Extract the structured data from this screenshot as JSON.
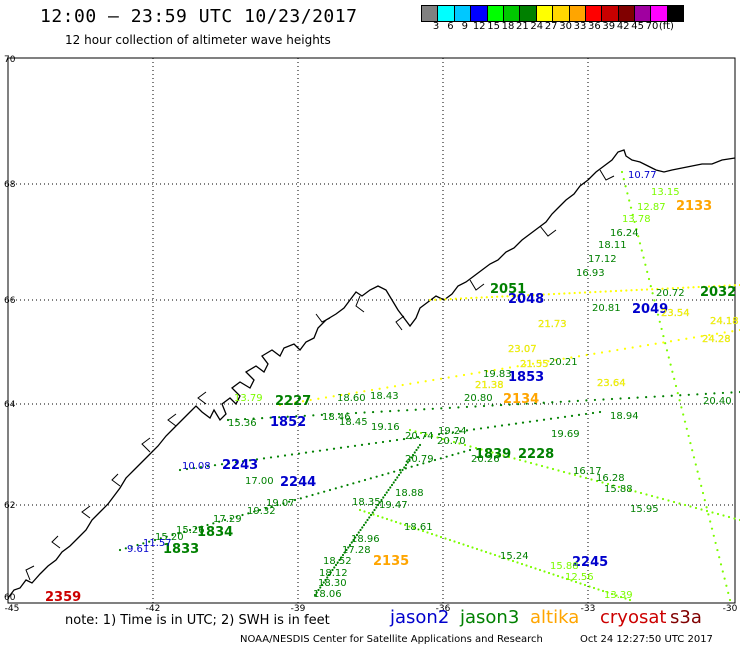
{
  "header": {
    "title": "12:00 – 23:59 UTC 10/23/2017",
    "subtitle": "12 hour collection of altimeter wave heights"
  },
  "colorbar": {
    "colors": [
      "#808080",
      "#00ffff",
      "#00c8ff",
      "#0000ff",
      "#00ff00",
      "#00c800",
      "#008000",
      "#ffff00",
      "#ffd700",
      "#ffa500",
      "#ff0000",
      "#c80000",
      "#800000",
      "#a000a0",
      "#ff00ff",
      "#000000"
    ],
    "labels": [
      "3",
      "6",
      "9",
      "12",
      "15",
      "18",
      "21",
      "24",
      "27",
      "30",
      "33",
      "36",
      "39",
      "42",
      "45",
      "70",
      "(ft)"
    ]
  },
  "axes": {
    "lat_labels": [
      "70",
      "68",
      "66",
      "64",
      "62",
      "60"
    ],
    "lon_labels": [
      "-45",
      "-42",
      "-39",
      "-36",
      "-33",
      "-30"
    ]
  },
  "satellite_colors": {
    "jason2": "#0000cc",
    "jason3": "#008000",
    "altika": "#ffa500",
    "cryosat": "#cc0000",
    "s3a": "#800000",
    "light_green": "#7cfc00",
    "yellow": "#ffff00"
  },
  "time_labels": [
    {
      "text": "2227",
      "sat": "jason3"
    },
    {
      "text": "1852",
      "sat": "jason2"
    },
    {
      "text": "2243",
      "sat": "jason2"
    },
    {
      "text": "2244",
      "sat": "jason2"
    },
    {
      "text": "1833",
      "sat": "jason3"
    },
    {
      "text": "1834",
      "sat": "jason3"
    },
    {
      "text": "2135",
      "sat": "altika"
    },
    {
      "text": "2245",
      "sat": "jason2"
    },
    {
      "text": "2133",
      "sat": "altika"
    },
    {
      "text": "2134",
      "sat": "altika"
    },
    {
      "text": "2048",
      "sat": "jason2"
    },
    {
      "text": "2051",
      "sat": "jason3"
    },
    {
      "text": "2049",
      "sat": "jason2"
    },
    {
      "text": "2032",
      "sat": "jason3"
    },
    {
      "text": "1853",
      "sat": "jason2"
    },
    {
      "text": "1839",
      "sat": "jason3"
    },
    {
      "text": "2228",
      "sat": "jason3"
    },
    {
      "text": "2359",
      "sat": "cryosat"
    }
  ],
  "wave_values": [
    {
      "text": "10.77",
      "sat": "jason2"
    },
    {
      "text": "13.15",
      "sat": "light_green"
    },
    {
      "text": "12.87",
      "sat": "light_green"
    },
    {
      "text": "13.78",
      "sat": "light_green"
    },
    {
      "text": "16.24",
      "sat": "jason3"
    },
    {
      "text": "18.11",
      "sat": "jason3"
    },
    {
      "text": "17.12",
      "sat": "jason3"
    },
    {
      "text": "16.93",
      "sat": "jason3"
    },
    {
      "text": "20.72",
      "sat": "jason3"
    },
    {
      "text": "20.81",
      "sat": "jason3"
    },
    {
      "text": "21.73",
      "sat": "yellow"
    },
    {
      "text": "21.55",
      "sat": "yellow"
    },
    {
      "text": "23.07",
      "sat": "yellow"
    },
    {
      "text": "20.21",
      "sat": "jason3"
    },
    {
      "text": "19.83",
      "sat": "jason3"
    },
    {
      "text": "20.80",
      "sat": "jason3"
    },
    {
      "text": "18.43",
      "sat": "jason3"
    },
    {
      "text": "18.60",
      "sat": "jason3"
    },
    {
      "text": "18.46",
      "sat": "jason3"
    },
    {
      "text": "18.45",
      "sat": "jason3"
    },
    {
      "text": "19.16",
      "sat": "jason3"
    },
    {
      "text": "15.36",
      "sat": "jason3"
    },
    {
      "text": "13.79",
      "sat": "light_green"
    },
    {
      "text": "20.74",
      "sat": "jason3"
    },
    {
      "text": "20.70",
      "sat": "jason3"
    },
    {
      "text": "20.79",
      "sat": "jason3"
    },
    {
      "text": "19.69",
      "sat": "jason3"
    },
    {
      "text": "20.26",
      "sat": "jason3"
    },
    {
      "text": "18.94",
      "sat": "jason3"
    },
    {
      "text": "10.08",
      "sat": "jason2"
    },
    {
      "text": "17.00",
      "sat": "jason3"
    },
    {
      "text": "19.07",
      "sat": "jason3"
    },
    {
      "text": "19.32",
      "sat": "jason3"
    },
    {
      "text": "17.29",
      "sat": "jason3"
    },
    {
      "text": "15.20",
      "sat": "jason3"
    },
    {
      "text": "15.26",
      "sat": "jason3"
    },
    {
      "text": "9.61",
      "sat": "jason2"
    },
    {
      "text": "11.57",
      "sat": "jason2"
    },
    {
      "text": "18.88",
      "sat": "jason3"
    },
    {
      "text": "19.47",
      "sat": "jason3"
    },
    {
      "text": "18.96",
      "sat": "jason3"
    },
    {
      "text": "17.28",
      "sat": "jason3"
    },
    {
      "text": "18.52",
      "sat": "jason3"
    },
    {
      "text": "18.12",
      "sat": "jason3"
    },
    {
      "text": "18.30",
      "sat": "jason3"
    },
    {
      "text": "18.06",
      "sat": "jason3"
    },
    {
      "text": "18.61",
      "sat": "jason3"
    },
    {
      "text": "15.24",
      "sat": "jason3"
    },
    {
      "text": "15.88",
      "sat": "light_green"
    },
    {
      "text": "12.56",
      "sat": "light_green"
    },
    {
      "text": "13.39",
      "sat": "light_green"
    },
    {
      "text": "16.17",
      "sat": "jason3"
    },
    {
      "text": "16.28",
      "sat": "jason3"
    },
    {
      "text": "15.88",
      "sat": "jason3"
    },
    {
      "text": "24.28",
      "sat": "yellow"
    },
    {
      "text": "24.18",
      "sat": "yellow"
    },
    {
      "text": "23.54",
      "sat": "yellow"
    },
    {
      "text": "21.38",
      "sat": "yellow"
    },
    {
      "text": "23.64",
      "sat": "yellow"
    },
    {
      "text": "20.40",
      "sat": "jason3"
    },
    {
      "text": "19.24",
      "sat": "jason3"
    },
    {
      "text": "18.35",
      "sat": "jason3"
    },
    {
      "text": "15.95",
      "sat": "jason3"
    }
  ],
  "footer": {
    "note": "note:  1) Time is in UTC;  2) SWH is in feet",
    "legend": [
      {
        "text": "jason2",
        "sat": "jason2"
      },
      {
        "text": "jason3",
        "sat": "jason3"
      },
      {
        "text": "altika",
        "sat": "altika"
      },
      {
        "text": "cryosat",
        "sat": "cryosat"
      },
      {
        "text": "s3a",
        "sat": "s3a"
      }
    ],
    "credit": "NOAA/NESDIS Center for Satellite Applications and Research",
    "timestamp": "Oct 24 12:27:50 UTC 2017"
  }
}
